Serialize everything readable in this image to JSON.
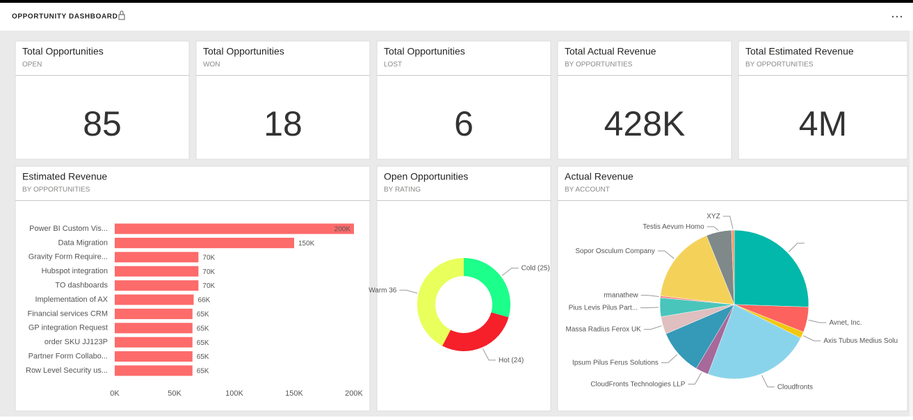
{
  "header": {
    "title": "OPPORTUNITY DASHBOARD"
  },
  "cards": [
    {
      "title": "Total Opportunities",
      "subtitle": "OPEN",
      "value": "85"
    },
    {
      "title": "Total Opportunities",
      "subtitle": "WON",
      "value": "18"
    },
    {
      "title": "Total Opportunities",
      "subtitle": "LOST",
      "value": "6"
    },
    {
      "title": "Total Actual Revenue",
      "subtitle": "BY OPPORTUNITIES",
      "value": "428K"
    },
    {
      "title": "Total Estimated Revenue",
      "subtitle": "BY OPPORTUNITIES",
      "value": "4M"
    }
  ],
  "chart_data": [
    {
      "type": "bar",
      "orientation": "horizontal",
      "title": "Estimated Revenue",
      "subtitle": "BY OPPORTUNITIES",
      "categories": [
        "Power BI Custom Vis...",
        "Data Migration",
        "Gravity Form Require...",
        "Hubspot integration",
        "TO dashboards",
        "Implementation of AX",
        "Financial services CRM",
        "GP integration Request",
        "order SKU JJ123P",
        "Partner Form Collabo...",
        "Row Level Security us..."
      ],
      "values": [
        200000,
        150000,
        70000,
        70000,
        70000,
        66000,
        65000,
        65000,
        65000,
        65000,
        65000
      ],
      "value_labels": [
        "200K",
        "150K",
        "70K",
        "70K",
        "70K",
        "66K",
        "65K",
        "65K",
        "65K",
        "65K",
        "65K"
      ],
      "color": "#fd6b6b",
      "xlim": [
        0,
        200000
      ],
      "xticks": [
        {
          "value": 0,
          "label": "0K"
        },
        {
          "value": 50000,
          "label": "50K"
        },
        {
          "value": 100000,
          "label": "100K"
        },
        {
          "value": 150000,
          "label": "150K"
        },
        {
          "value": 200000,
          "label": "200K"
        }
      ]
    },
    {
      "type": "donut",
      "title": "Open Opportunities",
      "subtitle": "BY RATING",
      "categories": [
        "Cold",
        "Hot",
        "Warm"
      ],
      "values": [
        25,
        24,
        36
      ],
      "value_labels": [
        "(25)",
        "(24)",
        "36"
      ],
      "colors": [
        "#1cff8a",
        "#f5202a",
        "#e9ff5c"
      ]
    },
    {
      "type": "pie",
      "title": "Actual Revenue",
      "subtitle": "BY ACCOUNT",
      "categories": [
        null,
        "Avnet, Inc.",
        "Axis Tubus Medius Solu",
        "Cloudfronts",
        "CloudFronts Technologies LLP",
        "Ipsum Pilus Ferus Solutions",
        "Massa Radius Ferox UK",
        "Pius Levis Pilus Part...",
        "rmanathew",
        "Sopor Osculum Company",
        "Testis Aevum Homo",
        "XYZ"
      ],
      "values": [
        25.5,
        5.5,
        1.4,
        23.3,
        2.8,
        10,
        3.8,
        4.1,
        0.4,
        17,
        5.5,
        0.6
      ],
      "colors": [
        "#01b8aa",
        "#fd625e",
        "#f2c80f",
        "#8ad4eb",
        "#a66999",
        "#3599b8",
        "#dfbfbf",
        "#4ac5bb",
        "#fb8281",
        "#f4d25a",
        "#7f898a",
        "#fe9666"
      ]
    }
  ]
}
